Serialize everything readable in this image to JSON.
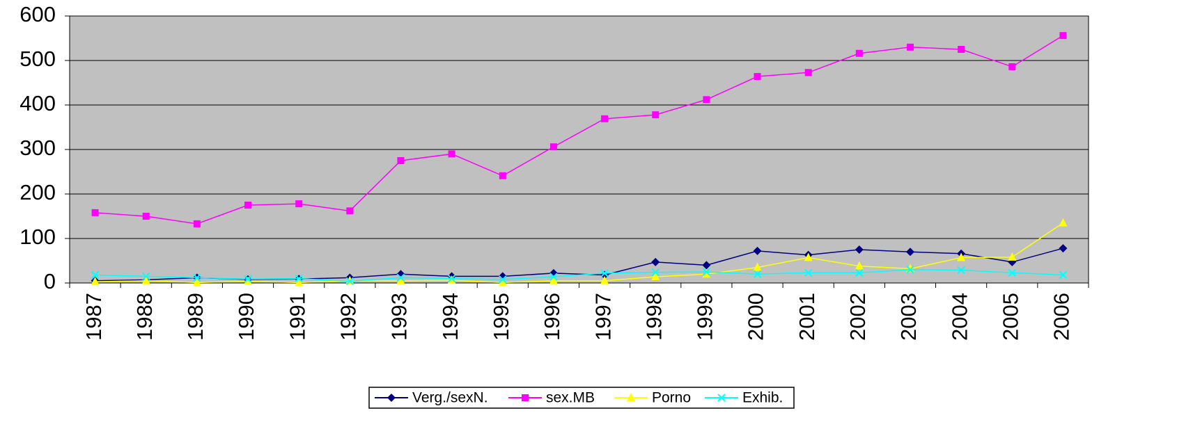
{
  "chart_data": {
    "type": "line",
    "categories": [
      "1987",
      "1988",
      "1989",
      "1990",
      "1991",
      "1992",
      "1993",
      "1994",
      "1995",
      "1996",
      "1997",
      "1998",
      "1999",
      "2000",
      "2001",
      "2002",
      "2003",
      "2004",
      "2005",
      "2006"
    ],
    "series": [
      {
        "name": "Verg./sexN.",
        "color": "#000080",
        "marker": "diamond",
        "values": [
          5,
          7,
          12,
          8,
          9,
          12,
          20,
          15,
          15,
          22,
          18,
          47,
          40,
          72,
          63,
          75,
          70,
          66,
          47,
          78
        ]
      },
      {
        "name": "sex.MB",
        "color": "#ff00ff",
        "marker": "square",
        "values": [
          158,
          150,
          133,
          175,
          178,
          162,
          275,
          290,
          241,
          306,
          369,
          378,
          412,
          464,
          473,
          516,
          530,
          525,
          486,
          556
        ]
      },
      {
        "name": "Porno",
        "color": "#ffff00",
        "marker": "triangle",
        "values": [
          3,
          5,
          1,
          4,
          1,
          5,
          5,
          6,
          1,
          5,
          5,
          14,
          20,
          35,
          57,
          38,
          32,
          57,
          58,
          135
        ]
      },
      {
        "name": "Exhib.",
        "color": "#00ffff",
        "marker": "x",
        "values": [
          18,
          15,
          12,
          9,
          10,
          4,
          12,
          10,
          8,
          14,
          22,
          24,
          25,
          20,
          23,
          23,
          30,
          29,
          23,
          18
        ]
      }
    ],
    "ylim": [
      0,
      600
    ],
    "yticks": [
      0,
      100,
      200,
      300,
      400,
      500,
      600
    ],
    "grid": true,
    "legend": "bottom"
  }
}
